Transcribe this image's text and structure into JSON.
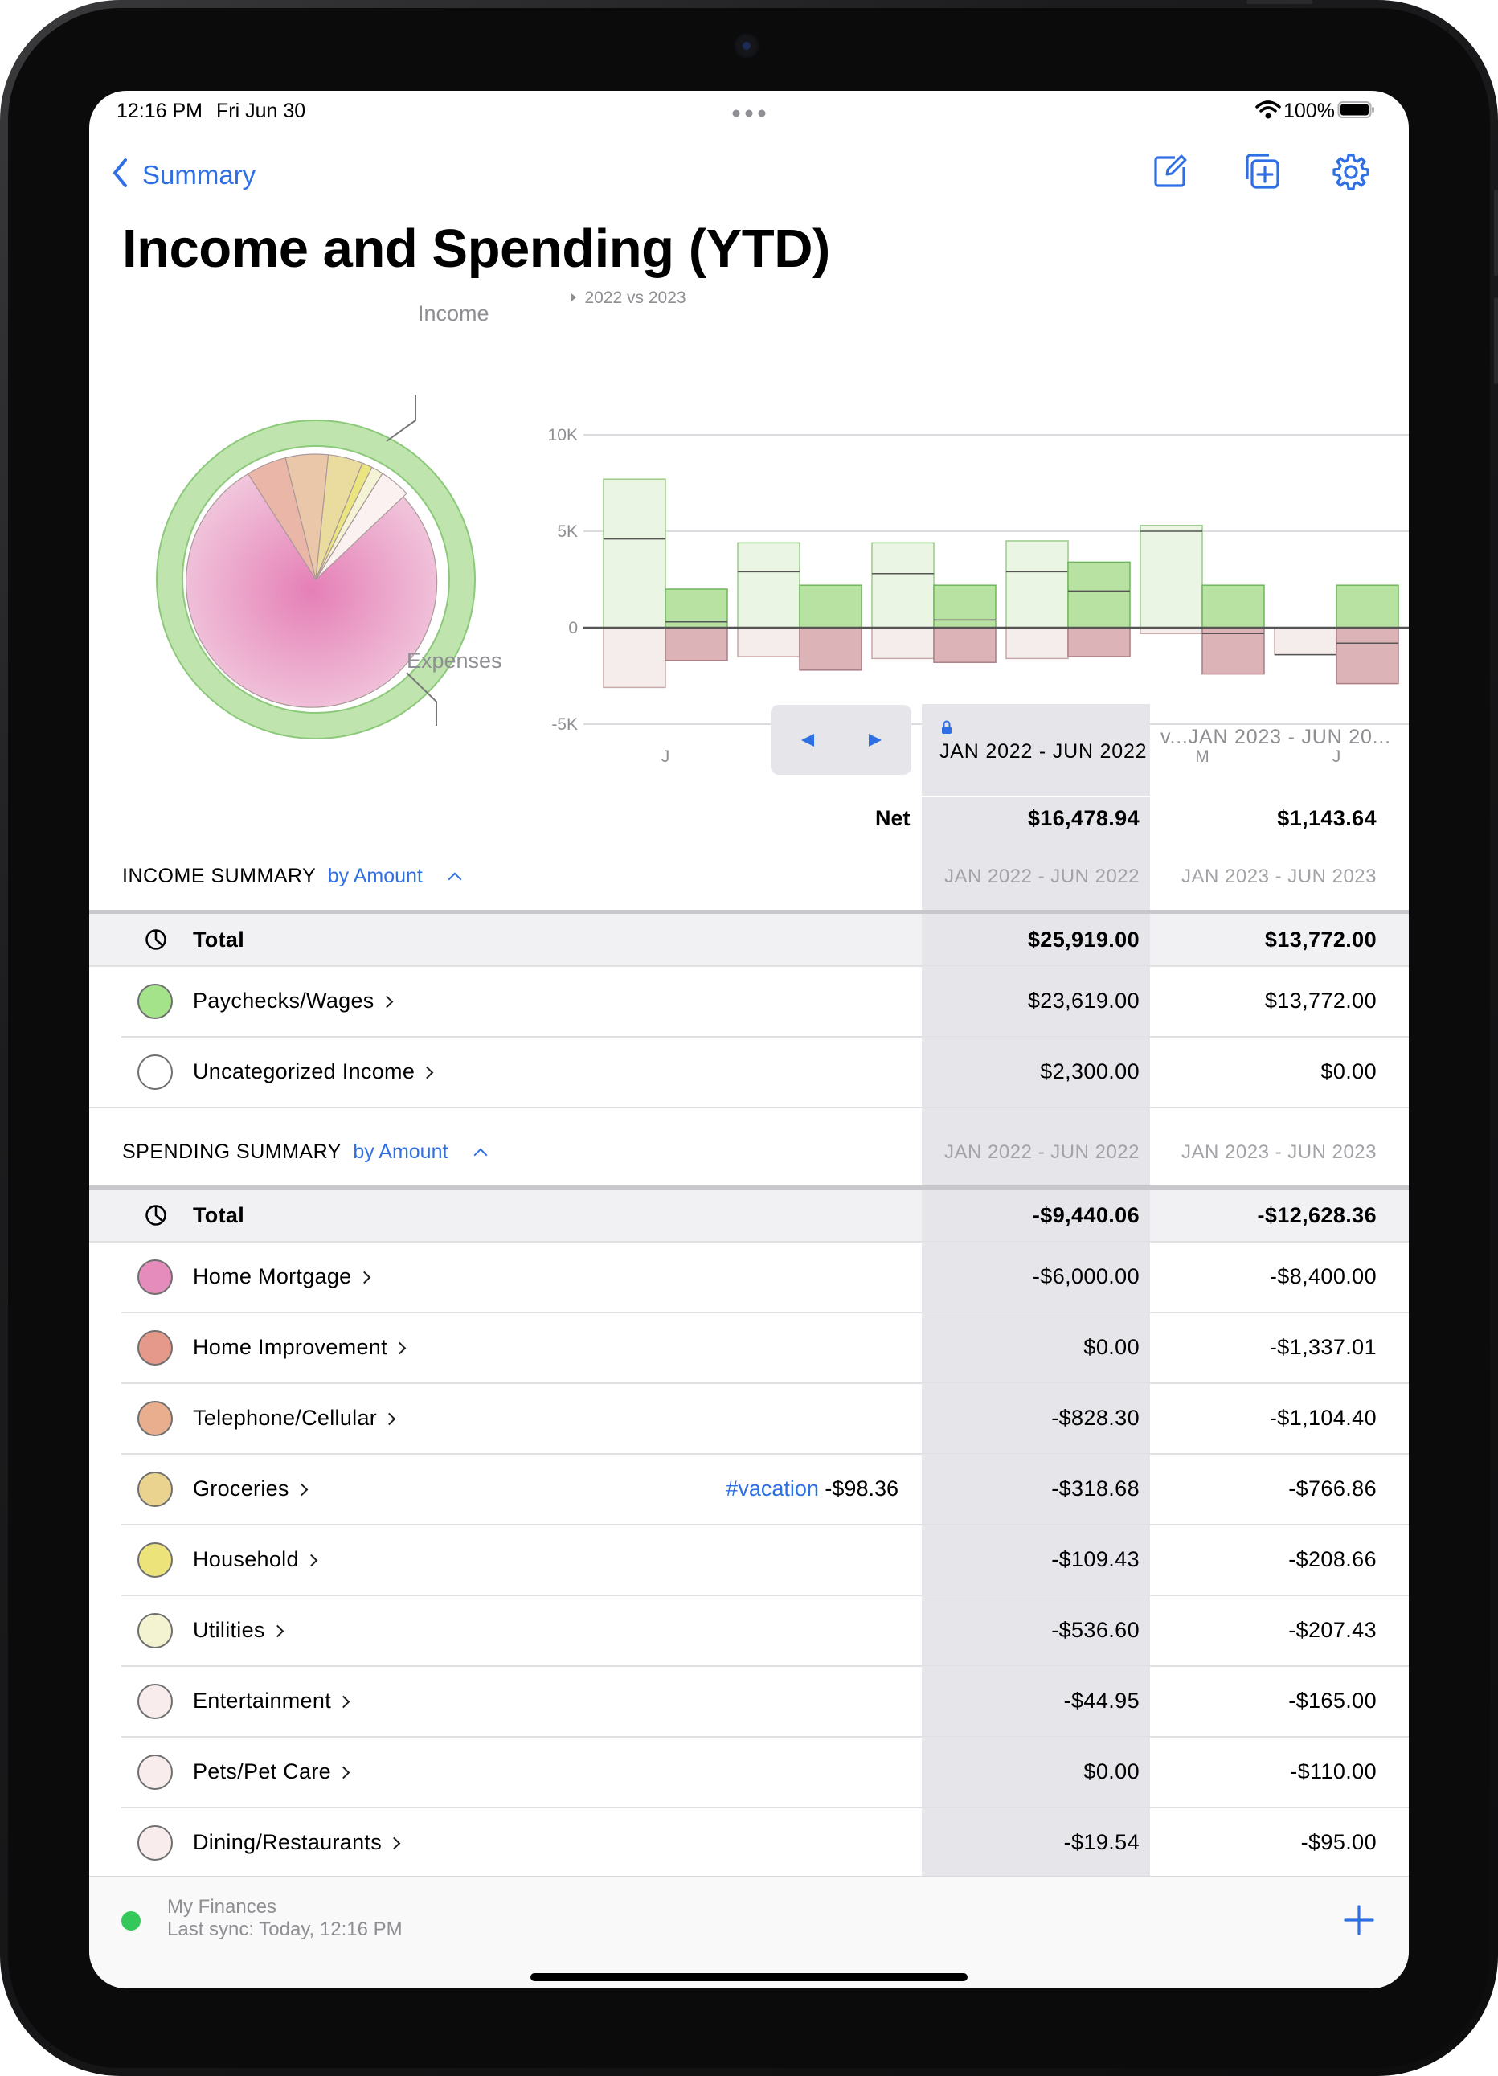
{
  "status_bar": {
    "time": "12:16 PM",
    "date": "Fri Jun 30",
    "battery": "100%"
  },
  "nav": {
    "back_label": "Summary"
  },
  "page_title": "Income and Spending (YTD)",
  "pie": {
    "income_label": "Income",
    "expenses_label": "Expenses"
  },
  "chart_data": {
    "type": "bar",
    "title": "2022 vs 2023",
    "categories": [
      "J",
      "F",
      "M",
      "A",
      "M",
      "J"
    ],
    "ylim": [
      -5000,
      10000
    ],
    "yticks": [
      "10K",
      "5K",
      "0",
      "-5K"
    ],
    "series": [
      {
        "name": "2022",
        "income": [
          7700,
          4400,
          4400,
          4500,
          5300,
          0
        ],
        "spending": [
          -3100,
          -1500,
          -1600,
          -1600,
          -300,
          -1400
        ],
        "net": [
          4600,
          2900,
          2800,
          2900,
          5000,
          -1400
        ]
      },
      {
        "name": "2023",
        "income": [
          2000,
          2200,
          2200,
          3400,
          2200,
          2200
        ],
        "spending": [
          -1700,
          -2200,
          -1800,
          -1500,
          -2400,
          -2900
        ],
        "net": [
          300,
          0,
          400,
          1900,
          -300,
          -800
        ]
      }
    ],
    "grid": true
  },
  "period": {
    "locked_label": "JAN 2022 - JUN 2022",
    "compare_label": "v...JAN 2023 - JUN 20..."
  },
  "net": {
    "label": "Net",
    "v1": "$16,478.94",
    "v2": "$1,143.64"
  },
  "income": {
    "header": "INCOME SUMMARY",
    "sort": "by Amount",
    "col1": "JAN 2022 - JUN 2022",
    "col2": "JAN 2023 - JUN 2023",
    "total": {
      "label": "Total",
      "v1": "$25,919.00",
      "v2": "$13,772.00"
    },
    "rows": [
      {
        "label": "Paychecks/Wages",
        "v1": "$23,619.00",
        "v2": "$13,772.00",
        "color": "#a5e38a"
      },
      {
        "label": "Uncategorized Income",
        "v1": "$2,300.00",
        "v2": "$0.00",
        "color": "#ffffff"
      }
    ]
  },
  "spending": {
    "header": "SPENDING SUMMARY",
    "sort": "by Amount",
    "col1": "JAN 2022 - JUN 2022",
    "col2": "JAN 2023 - JUN 2023",
    "total": {
      "label": "Total",
      "v1": "-$9,440.06",
      "v2": "-$12,628.36"
    },
    "rows": [
      {
        "label": "Home Mortgage",
        "v1": "-$6,000.00",
        "v2": "-$8,400.00",
        "color": "#e58cbd"
      },
      {
        "label": "Home Improvement",
        "v1": "$0.00",
        "v2": "-$1,337.01",
        "color": "#e5998a"
      },
      {
        "label": "Telephone/Cellular",
        "v1": "-$828.30",
        "v2": "-$1,104.40",
        "color": "#e8ae8e"
      },
      {
        "label": "Groceries",
        "v1": "-$318.68",
        "v2": "-$766.86",
        "color": "#e9d38f",
        "tag": "#vacation",
        "tag_value": "-$98.36"
      },
      {
        "label": "Household",
        "v1": "-$109.43",
        "v2": "-$208.66",
        "color": "#ece37a"
      },
      {
        "label": "Utilities",
        "v1": "-$536.60",
        "v2": "-$207.43",
        "color": "#f3f3d2"
      },
      {
        "label": "Entertainment",
        "v1": "-$44.95",
        "v2": "-$165.00",
        "color": "#f9ecec"
      },
      {
        "label": "Pets/Pet Care",
        "v1": "$0.00",
        "v2": "-$110.00",
        "color": "#f9ecec"
      },
      {
        "label": "Dining/Restaurants",
        "v1": "-$19.54",
        "v2": "-$95.00",
        "color": "#f9ecec"
      }
    ]
  },
  "footer": {
    "account": "My Finances",
    "sync": "Last sync: Today, 12:16 PM"
  }
}
